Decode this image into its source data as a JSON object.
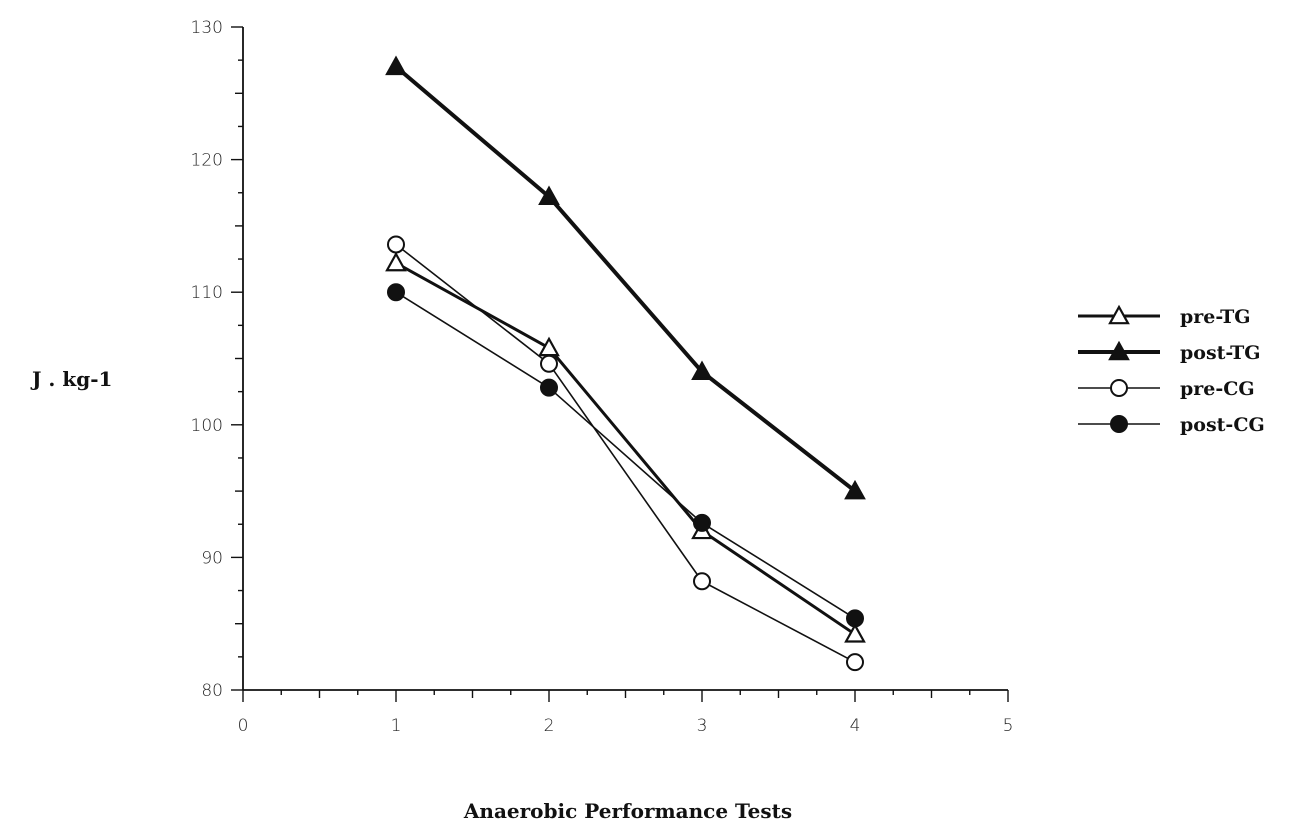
{
  "chart_data": {
    "type": "line",
    "xlabel": "Anaerobic Performance Tests",
    "ylabel": "J . kg-1",
    "xlim": [
      0,
      5
    ],
    "ylim": [
      80,
      130
    ],
    "x_ticks": [
      0,
      1,
      2,
      3,
      4,
      5
    ],
    "y_ticks": [
      80,
      90,
      100,
      110,
      120,
      130
    ],
    "grid": false,
    "legend_position": "right",
    "x": [
      1,
      2,
      3,
      4
    ],
    "series": [
      {
        "name": "pre-TG",
        "marker": "open-triangle",
        "values": [
          112.2,
          105.8,
          92.0,
          84.2
        ]
      },
      {
        "name": "post-TG",
        "marker": "filled-triangle",
        "values": [
          127.0,
          117.2,
          104.0,
          95.0
        ]
      },
      {
        "name": "pre-CG",
        "marker": "open-circle",
        "values": [
          113.6,
          104.6,
          88.2,
          82.1
        ]
      },
      {
        "name": "post-CG",
        "marker": "filled-circle",
        "values": [
          110.0,
          102.8,
          92.6,
          85.4
        ]
      }
    ],
    "colors": {
      "line": "#111111",
      "open_fill": "#ffffff",
      "filled_fill": "#111111"
    }
  }
}
